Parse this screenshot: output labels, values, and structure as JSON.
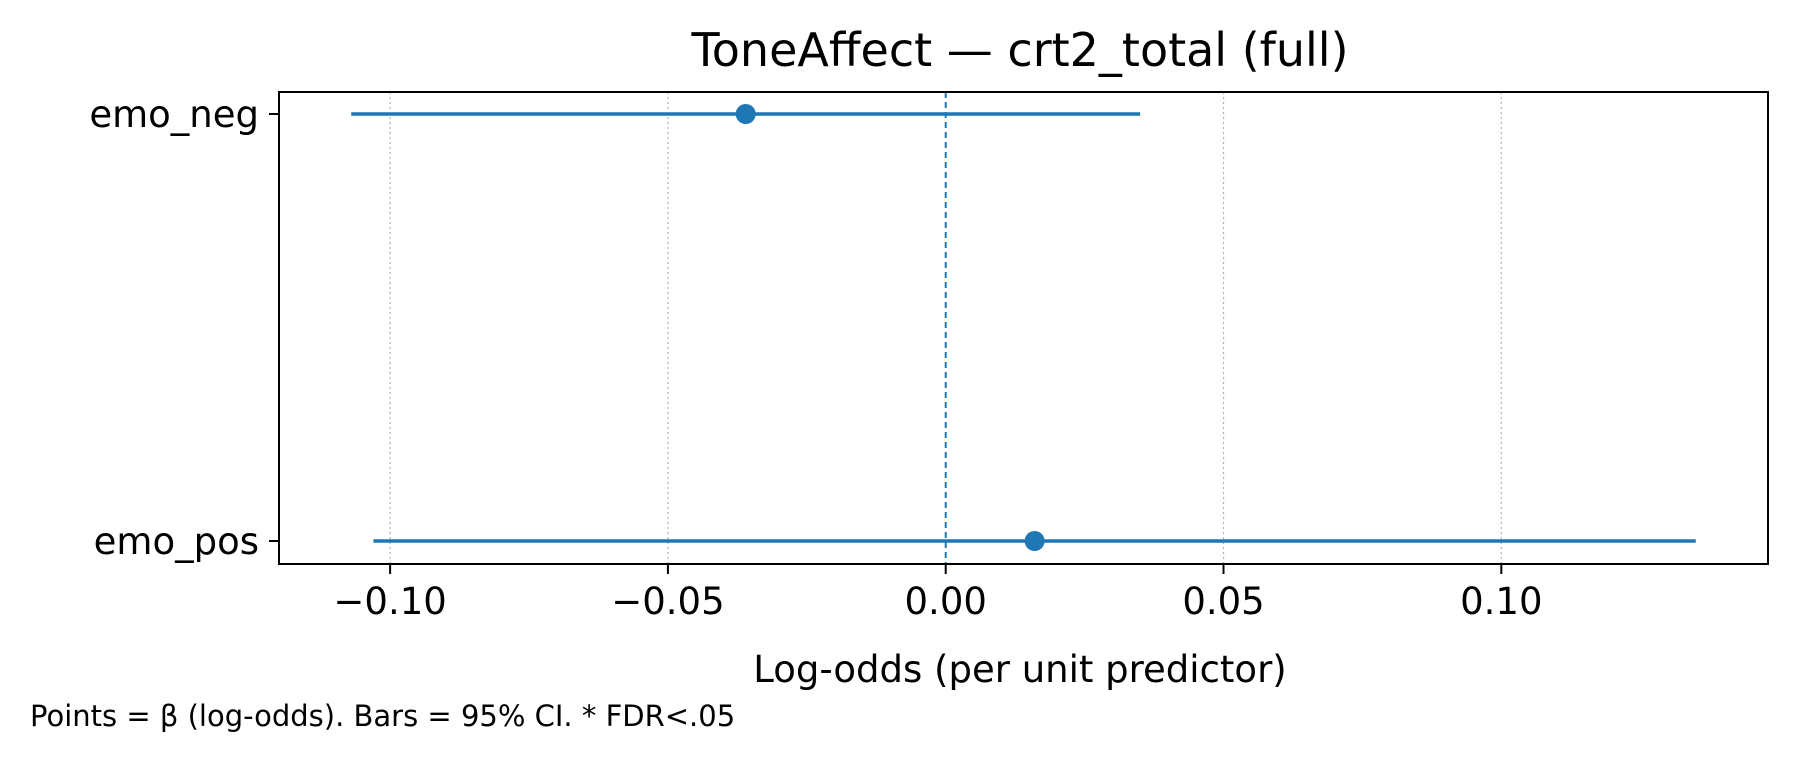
{
  "chart_data": {
    "type": "forest",
    "title": "ToneAffect — crt2_total (full)",
    "xlabel": "Log-odds (per unit predictor)",
    "ylabel": "",
    "xlim": [
      -0.12,
      0.148
    ],
    "xticks": [
      -0.1,
      -0.05,
      0.0,
      0.05,
      0.1
    ],
    "xtick_labels": [
      "−0.10",
      "−0.05",
      "0.00",
      "0.05",
      "0.10"
    ],
    "reference_line": 0,
    "grid": "x-dotted",
    "color": "#1f77b4",
    "series": [
      {
        "label": "emo_neg",
        "estimate": -0.036,
        "ci_low": -0.107,
        "ci_high": 0.035
      },
      {
        "label": "emo_pos",
        "estimate": 0.016,
        "ci_low": -0.103,
        "ci_high": 0.135
      }
    ],
    "footnote": "Points = β (log-odds). Bars = 95% CI. * FDR<.05"
  }
}
